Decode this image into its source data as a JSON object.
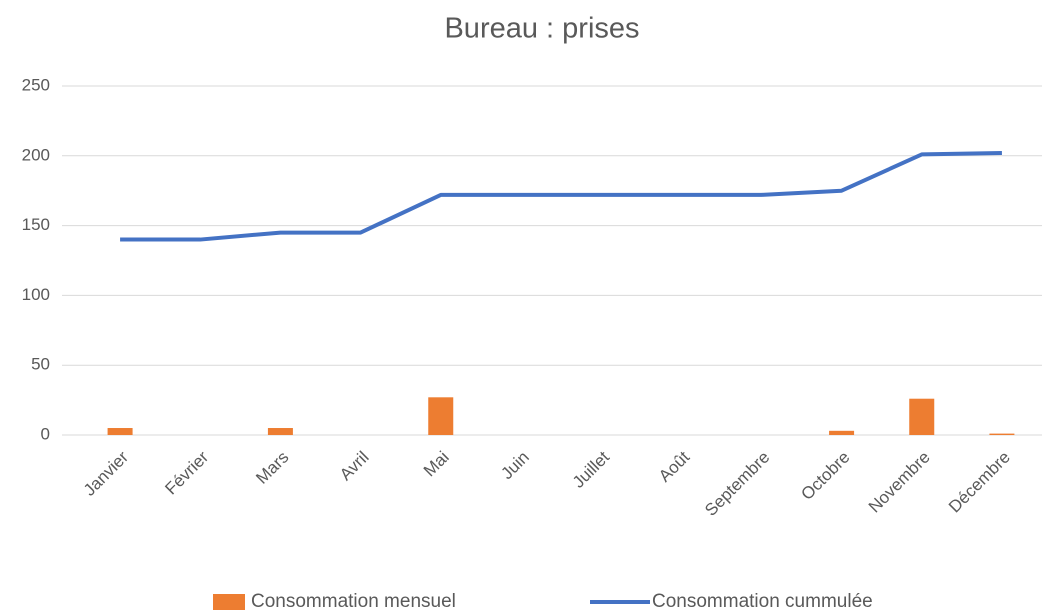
{
  "chart_data": {
    "type": "combo",
    "title": "Bureau : prises",
    "categories": [
      "Janvier",
      "Février",
      "Mars",
      "Avril",
      "Mai",
      "Juin",
      "Juillet",
      "Août",
      "Septembre",
      "Octobre",
      "Novembre",
      "Décembre"
    ],
    "series": [
      {
        "name": "Consommation mensuel",
        "type": "bar",
        "color": "#ed7d31",
        "values": [
          5,
          0,
          5,
          0,
          27,
          0,
          0,
          0,
          0,
          3,
          26,
          1
        ]
      },
      {
        "name": "Consommation cummulée",
        "type": "line",
        "color": "#4472c4",
        "values": [
          140,
          140,
          145,
          145,
          172,
          172,
          172,
          172,
          172,
          175,
          201,
          202
        ]
      }
    ],
    "ylim": [
      0,
      250
    ],
    "yticks": [
      0,
      50,
      100,
      150,
      200,
      250
    ],
    "grid": true,
    "legend": "bottom"
  }
}
